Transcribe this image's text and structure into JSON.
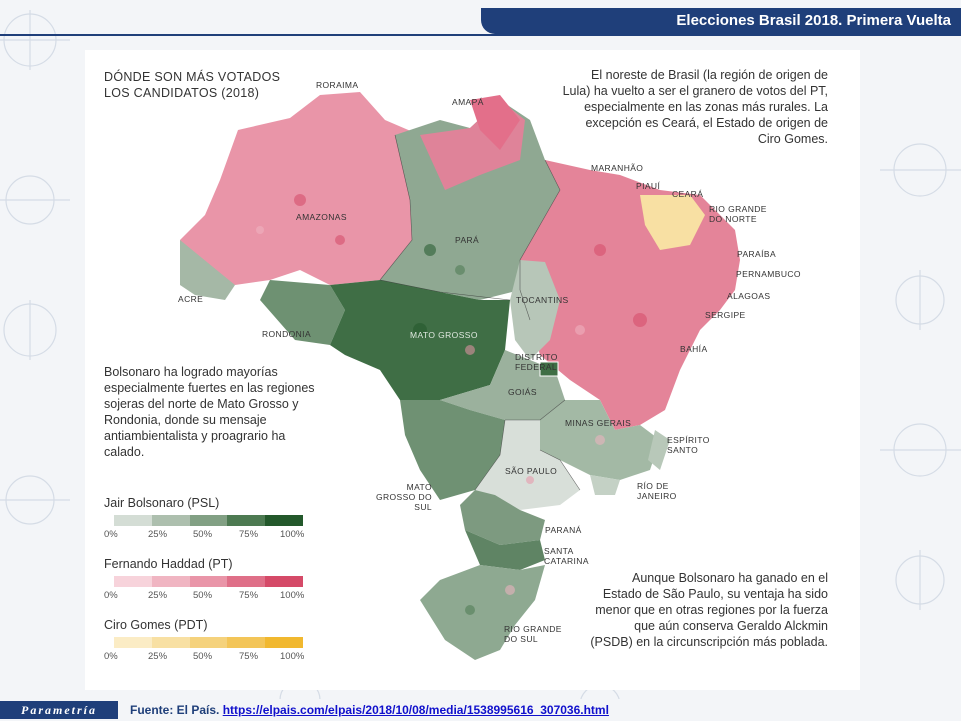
{
  "header": {
    "title": "Elecciones Brasil 2018. Primera Vuelta"
  },
  "map": {
    "heading": "DÓNDE SON MÁS VOTADOS LOS CANDIDATOS (2018)",
    "annotations": {
      "northeast": "El noreste de Brasil (la región de origen de Lula) ha vuelto a ser el granero de votos del PT, especialmente en las zonas más rurales. La excepción es Ceará, el Estado de origen de Ciro Gomes.",
      "mato_grosso": "Bolsonaro ha logrado mayorías especialmente fuertes en las regiones sojeras del norte de Mato Grosso y Rondonia, donde su mensaje antiambientalista y proagrario ha calado.",
      "sao_paulo": "Aunque Bolsonaro ha ganado en el Estado de São Paulo, su ventaja ha sido menor que en otras regiones por la fuerza que aún conserva Geraldo Alckmin (PSDB) en la circunscripción más poblada."
    },
    "states": {
      "roraima": "RORAIMA",
      "amapa": "AMAPÁ",
      "amazonas": "AMAZONAS",
      "para": "PARÁ",
      "maranhao": "MARANHÃO",
      "piaui": "PIAUÍ",
      "ceara": "CEARÁ",
      "rgn": "RIO GRANDE DO NORTE",
      "paraiba": "PARAÍBA",
      "pernambuco": "PERNAMBUCO",
      "alagoas": "ALAGOAS",
      "sergipe": "SERGIPE",
      "bahia": "BAHÍA",
      "acre": "ACRE",
      "rondonia": "RONDONIA",
      "tocantins": "TOCANTINS",
      "mato_grosso": "MATO GROSSO",
      "df": "DISTRITO FEDERAL",
      "goias": "GOIÁS",
      "minas": "MINAS GERAIS",
      "espirito": "ESPÍRITO SANTO",
      "mgs": "MATO GROSSO DO SUL",
      "sao_paulo": "SÃO PAULO",
      "rio": "RÍO DE JANEIRO",
      "parana": "PARANÁ",
      "santa_catarina": "SANTA CATARINA",
      "rgs": "RIO GRANDE DO SUL"
    },
    "legend": [
      {
        "name": "Jair Bolsonaro (PSL)",
        "colors": [
          "#d4ddd5",
          "#adbfae",
          "#82a084",
          "#4d7a52",
          "#23582b"
        ]
      },
      {
        "name": "Fernando Haddad (PT)",
        "colors": [
          "#f7d3db",
          "#f0b5c2",
          "#e995a8",
          "#df6f88",
          "#d54a68"
        ]
      },
      {
        "name": "Ciro Gomes (PDT)",
        "colors": [
          "#fbecc5",
          "#f8e0a3",
          "#f5d27c",
          "#f3c558",
          "#f1b82f"
        ]
      }
    ],
    "legend_ticks": [
      "0%",
      "25%",
      "50%",
      "75%",
      "100%"
    ]
  },
  "footer": {
    "brand": "Parametría",
    "source_label": "Fuente: El País.",
    "source_url": "https://elpais.com/elpais/2018/10/08/media/1538995616_307036.html"
  }
}
